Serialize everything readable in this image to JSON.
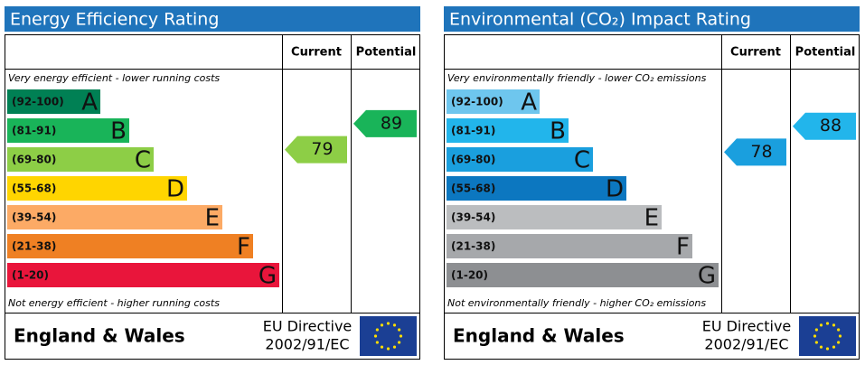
{
  "panels": [
    {
      "title": "Energy Efficiency Rating",
      "headers": [
        "Current",
        "Potential"
      ],
      "top_note": "Very energy efficient - lower running costs",
      "bottom_note": "Not energy efficient - higher running costs",
      "bands": [
        {
          "range": "(92-100)",
          "letter": "A",
          "color": "#008054"
        },
        {
          "range": "(81-91)",
          "letter": "B",
          "color": "#19b459"
        },
        {
          "range": "(69-80)",
          "letter": "C",
          "color": "#8dce46"
        },
        {
          "range": "(55-68)",
          "letter": "D",
          "color": "#ffd500"
        },
        {
          "range": "(39-54)",
          "letter": "E",
          "color": "#fcaa65"
        },
        {
          "range": "(21-38)",
          "letter": "F",
          "color": "#ef8023"
        },
        {
          "range": "(1-20)",
          "letter": "G",
          "color": "#e9153b"
        }
      ],
      "current": 79,
      "potential": 89,
      "footer": {
        "region": "England & Wales",
        "directive": [
          "EU Directive",
          "2002/91/EC"
        ]
      }
    },
    {
      "title": "Environmental (CO₂) Impact Rating",
      "headers": [
        "Current",
        "Potential"
      ],
      "top_note": "Very environmentally friendly - lower CO₂ emissions",
      "bottom_note": "Not environmentally friendly - higher CO₂ emissions",
      "bands": [
        {
          "range": "(92-100)",
          "letter": "A",
          "color": "#6ec6ee"
        },
        {
          "range": "(81-91)",
          "letter": "B",
          "color": "#22b5eb"
        },
        {
          "range": "(69-80)",
          "letter": "C",
          "color": "#1a9fde"
        },
        {
          "range": "(55-68)",
          "letter": "D",
          "color": "#0c77c0"
        },
        {
          "range": "(39-54)",
          "letter": "E",
          "color": "#bbbdbf"
        },
        {
          "range": "(21-38)",
          "letter": "F",
          "color": "#a6a8ab"
        },
        {
          "range": "(1-20)",
          "letter": "G",
          "color": "#8d8f92"
        }
      ],
      "current": 78,
      "potential": 88,
      "footer": {
        "region": "England & Wales",
        "directive": [
          "EU Directive",
          "2002/91/EC"
        ]
      }
    }
  ]
}
